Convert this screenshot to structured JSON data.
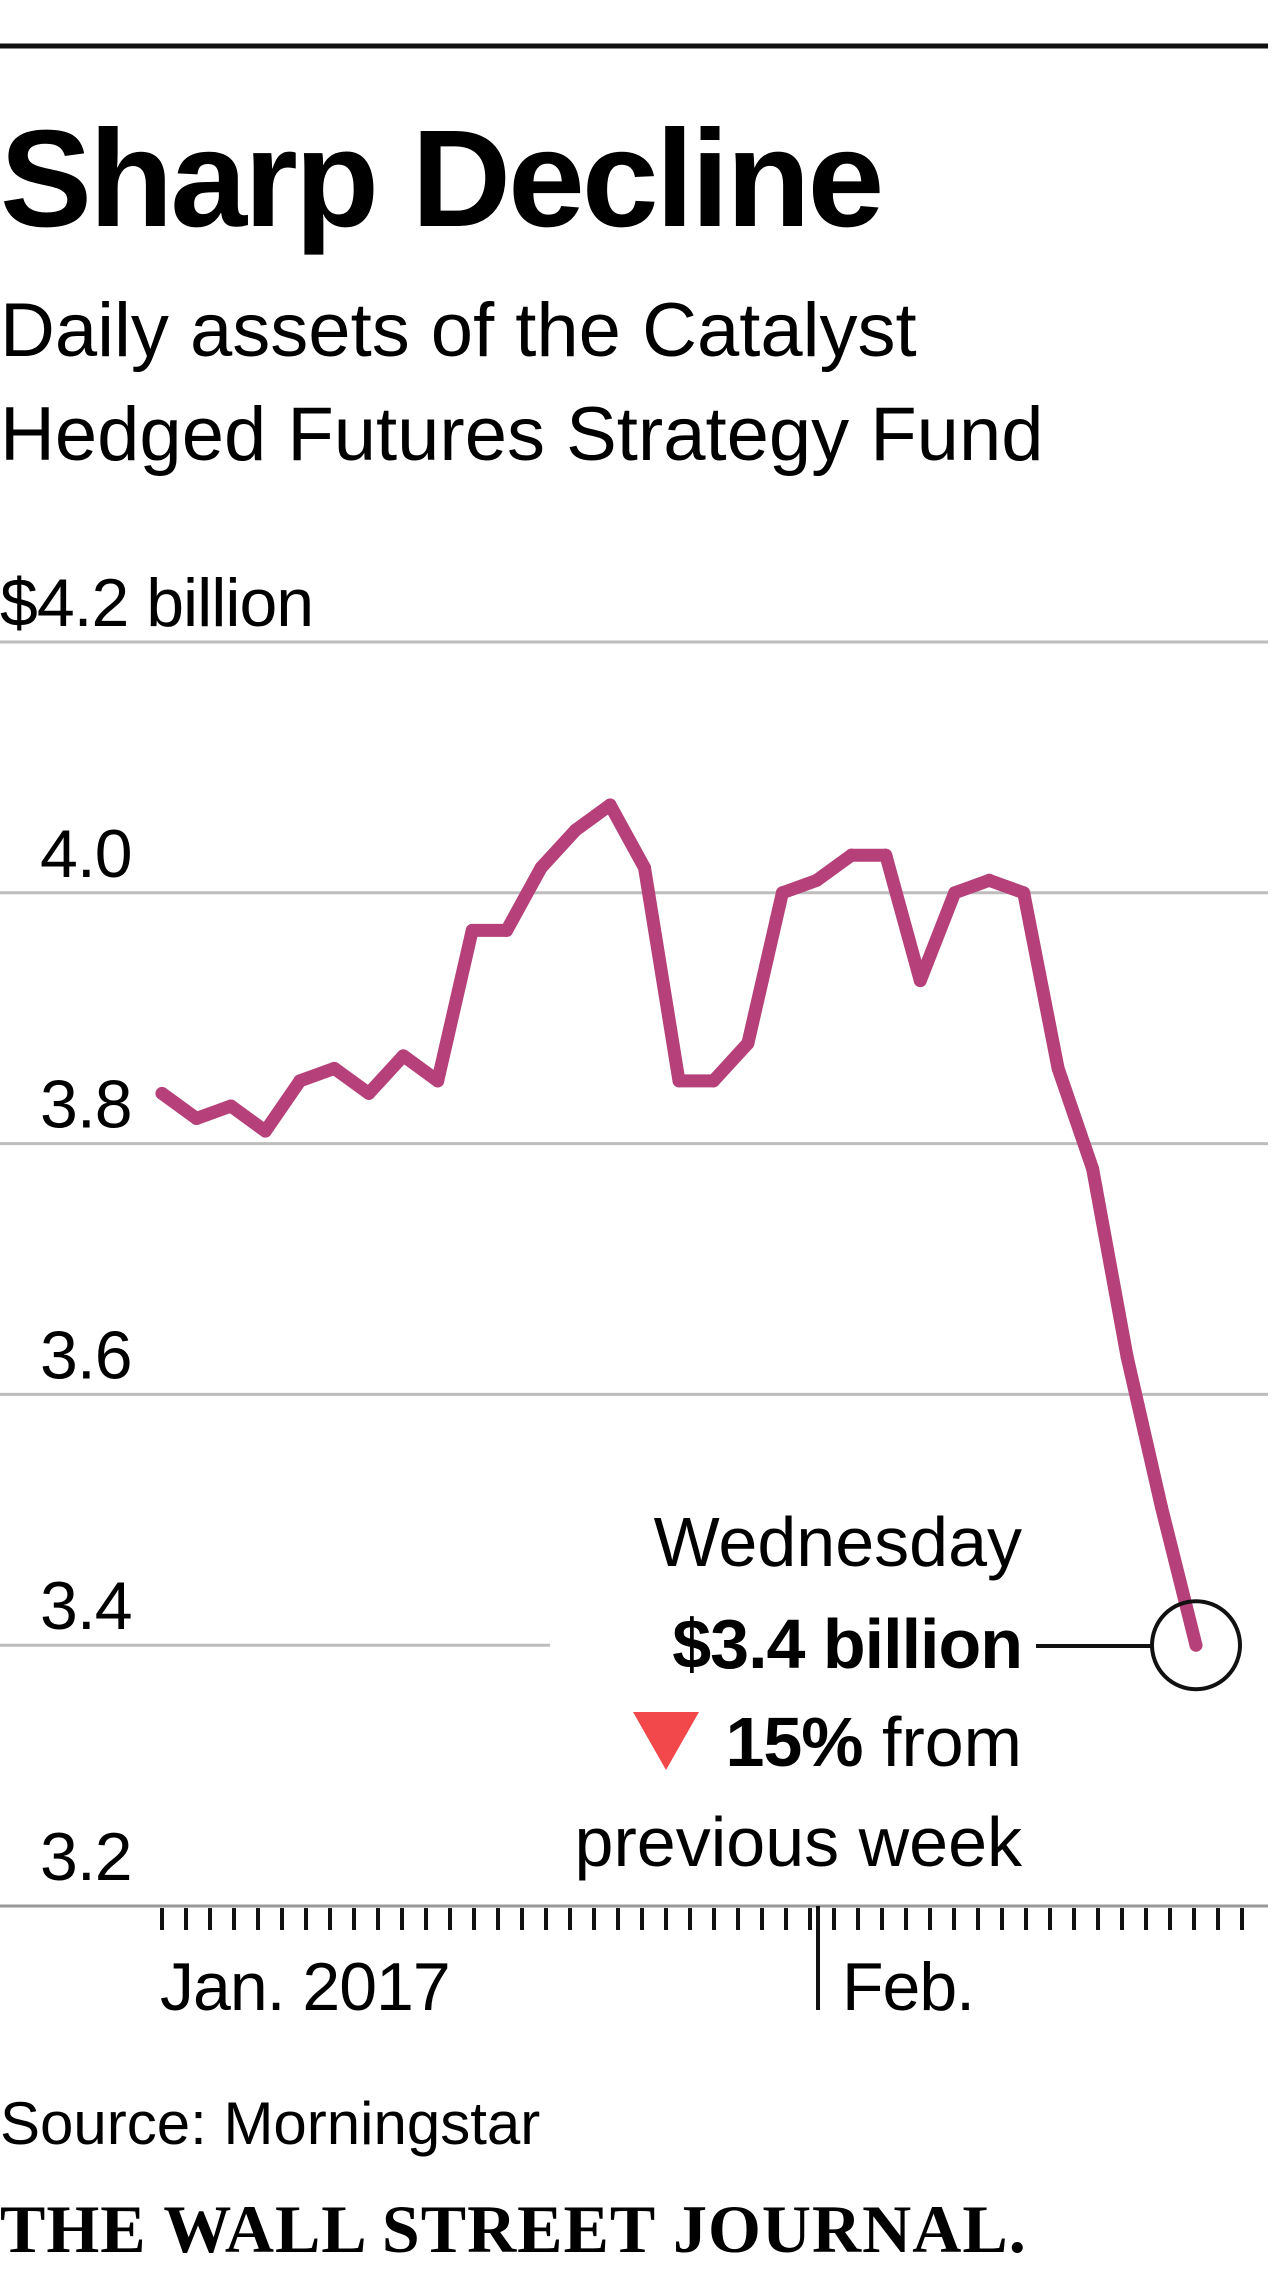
{
  "chart_data": {
    "type": "line",
    "title": "Sharp Decline",
    "subtitle_lines": [
      "Daily assets of the Catalyst",
      "Hedged Futures Strategy Fund"
    ],
    "ylim": [
      3.2,
      4.2
    ],
    "y_ticks": [
      {
        "value": 4.2,
        "label": "$4.2 billion"
      },
      {
        "value": 4.0,
        "label": "4.0"
      },
      {
        "value": 3.8,
        "label": "3.8"
      },
      {
        "value": 3.6,
        "label": "3.6"
      },
      {
        "value": 3.4,
        "label": "3.4"
      },
      {
        "value": 3.2,
        "label": "3.2"
      }
    ],
    "x_labels": {
      "jan": "Jan. 2017",
      "feb": "Feb."
    },
    "grid": true,
    "line_color": "#b5407a",
    "values": [
      3.84,
      3.82,
      3.83,
      3.81,
      3.85,
      3.86,
      3.84,
      3.87,
      3.85,
      3.97,
      3.97,
      4.02,
      4.05,
      4.07,
      4.02,
      3.85,
      3.85,
      3.88,
      4.0,
      4.01,
      4.03,
      4.03,
      3.93,
      4.0,
      4.01,
      4.0,
      3.86,
      3.78,
      3.63,
      3.51,
      3.4
    ],
    "annotation": {
      "line1": "Wednesday",
      "value": "$3.4 billion",
      "change_bold": "15%",
      "change_rest": " from",
      "line4": "previous week"
    },
    "source": "Source: Morningstar",
    "brand": "THE WALL STREET JOURNAL."
  }
}
